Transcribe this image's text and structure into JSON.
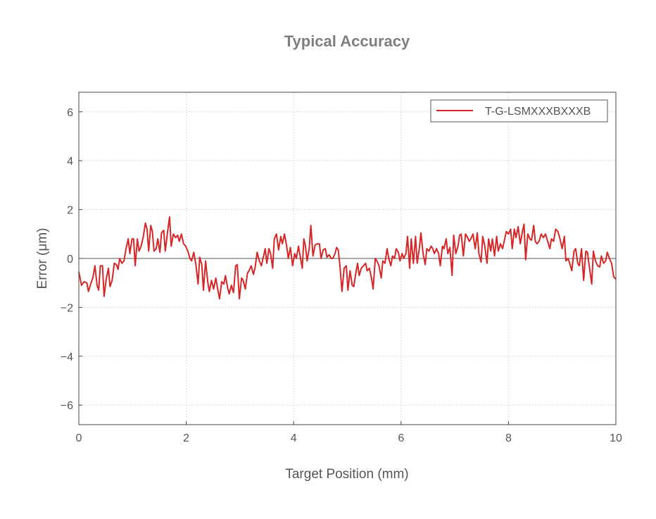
{
  "chart_data": {
    "type": "line",
    "title": "Typical Accuracy",
    "xlabel": "Target Position (mm)",
    "ylabel": "Error (μm)",
    "xlim": [
      0,
      10
    ],
    "ylim": [
      -6.8,
      6.8
    ],
    "xticks": [
      0,
      2,
      4,
      6,
      8,
      10
    ],
    "yticks": [
      -6,
      -4,
      -2,
      0,
      2,
      4,
      6
    ],
    "xtick_labels": [
      "0",
      "2",
      "4",
      "6",
      "8",
      "10"
    ],
    "ytick_labels": [
      "−6",
      "−4",
      "−2",
      "0",
      "2",
      "4",
      "6"
    ],
    "grid": true,
    "zero_line": true,
    "legend": {
      "position": "top-right"
    },
    "series": [
      {
        "name": "T-G-LSMXXXBXXXB",
        "color": "#d62728",
        "points": [
          [
            0.0,
            -0.55
          ],
          [
            0.05,
            -1.1
          ],
          [
            0.1,
            -0.95
          ],
          [
            0.15,
            -1.0
          ],
          [
            0.18,
            -1.35
          ],
          [
            0.22,
            -1.05
          ],
          [
            0.26,
            -0.8
          ],
          [
            0.3,
            -0.3
          ],
          [
            0.34,
            -1.1
          ],
          [
            0.37,
            -1.3
          ],
          [
            0.4,
            -0.3
          ],
          [
            0.44,
            -0.3
          ],
          [
            0.47,
            -1.55
          ],
          [
            0.51,
            -0.85
          ],
          [
            0.55,
            -0.4
          ],
          [
            0.58,
            -1.15
          ],
          [
            0.62,
            -0.9
          ],
          [
            0.66,
            -0.2
          ],
          [
            0.7,
            -0.25
          ],
          [
            0.73,
            -0.45
          ],
          [
            0.76,
            0.0
          ],
          [
            0.8,
            -0.2
          ],
          [
            0.84,
            -0.1
          ],
          [
            0.88,
            0.4
          ],
          [
            0.92,
            0.8
          ],
          [
            0.95,
            0.2
          ],
          [
            0.99,
            0.8
          ],
          [
            1.02,
            0.8
          ],
          [
            1.05,
            -0.3
          ],
          [
            1.09,
            0.8
          ],
          [
            1.12,
            0.3
          ],
          [
            1.16,
            0.5
          ],
          [
            1.2,
            0.9
          ],
          [
            1.24,
            1.45
          ],
          [
            1.27,
            1.2
          ],
          [
            1.3,
            0.3
          ],
          [
            1.34,
            1.35
          ],
          [
            1.37,
            1.1
          ],
          [
            1.4,
            0.3
          ],
          [
            1.44,
            0.4
          ],
          [
            1.47,
            0.8
          ],
          [
            1.51,
            0.25
          ],
          [
            1.54,
            1.05
          ],
          [
            1.58,
            1.15
          ],
          [
            1.61,
            0.3
          ],
          [
            1.65,
            1.05
          ],
          [
            1.69,
            1.7
          ],
          [
            1.72,
            0.5
          ],
          [
            1.76,
            1.0
          ],
          [
            1.8,
            0.85
          ],
          [
            1.84,
            0.95
          ],
          [
            1.87,
            0.7
          ],
          [
            1.91,
            1.0
          ],
          [
            1.95,
            0.6
          ],
          [
            1.99,
            0.5
          ],
          [
            2.03,
            0.3
          ],
          [
            2.07,
            0.0
          ],
          [
            2.1,
            -0.1
          ],
          [
            2.14,
            0.25
          ],
          [
            2.18,
            -0.25
          ],
          [
            2.22,
            -1.05
          ],
          [
            2.25,
            0.05
          ],
          [
            2.29,
            -0.25
          ],
          [
            2.32,
            -1.3
          ],
          [
            2.36,
            -0.1
          ],
          [
            2.4,
            -0.95
          ],
          [
            2.43,
            -1.35
          ],
          [
            2.47,
            -0.9
          ],
          [
            2.51,
            -1.25
          ],
          [
            2.55,
            -0.8
          ],
          [
            2.58,
            -1.2
          ],
          [
            2.62,
            -1.65
          ],
          [
            2.66,
            -0.95
          ],
          [
            2.7,
            -1.05
          ],
          [
            2.73,
            -0.7
          ],
          [
            2.77,
            -1.2
          ],
          [
            2.8,
            -1.45
          ],
          [
            2.84,
            -1.1
          ],
          [
            2.88,
            -1.4
          ],
          [
            2.92,
            -0.3
          ],
          [
            2.95,
            -0.25
          ],
          [
            2.99,
            -1.65
          ],
          [
            3.03,
            -0.8
          ],
          [
            3.06,
            -0.9
          ],
          [
            3.1,
            -1.25
          ],
          [
            3.14,
            -0.6
          ],
          [
            3.17,
            -0.5
          ],
          [
            3.21,
            -0.3
          ],
          [
            3.25,
            -0.65
          ],
          [
            3.28,
            -0.4
          ],
          [
            3.32,
            0.25
          ],
          [
            3.36,
            -0.1
          ],
          [
            3.4,
            -0.3
          ],
          [
            3.43,
            0.0
          ],
          [
            3.47,
            0.4
          ],
          [
            3.5,
            -0.2
          ],
          [
            3.54,
            0.4
          ],
          [
            3.57,
            0.2
          ],
          [
            3.61,
            -0.4
          ],
          [
            3.64,
            0.8
          ],
          [
            3.68,
            1.0
          ],
          [
            3.72,
            0.35
          ],
          [
            3.76,
            0.9
          ],
          [
            3.79,
            0.6
          ],
          [
            3.83,
            1.0
          ],
          [
            3.87,
            0.5
          ],
          [
            3.9,
            0.0
          ],
          [
            3.94,
            0.45
          ],
          [
            3.98,
            -0.3
          ],
          [
            4.02,
            0.2
          ],
          [
            4.05,
            0.0
          ],
          [
            4.09,
            0.5
          ],
          [
            4.12,
            0.1
          ],
          [
            4.16,
            -0.4
          ],
          [
            4.19,
            0.8
          ],
          [
            4.22,
            0.5
          ],
          [
            4.25,
            -0.1
          ],
          [
            4.29,
            0.4
          ],
          [
            4.32,
            1.35
          ],
          [
            4.36,
            0.1
          ],
          [
            4.4,
            0.55
          ],
          [
            4.44,
            0.6
          ],
          [
            4.48,
            0.6
          ],
          [
            4.51,
            0.0
          ],
          [
            4.55,
            0.35
          ],
          [
            4.59,
            0.4
          ],
          [
            4.62,
            0.05
          ],
          [
            4.66,
            0.15
          ],
          [
            4.7,
            0.0
          ],
          [
            4.73,
            0.0
          ],
          [
            4.77,
            0.2
          ],
          [
            4.8,
            0.45
          ],
          [
            4.83,
            0.35
          ],
          [
            4.86,
            -0.25
          ],
          [
            4.9,
            -1.35
          ],
          [
            4.94,
            -0.4
          ],
          [
            4.98,
            -0.3
          ],
          [
            5.01,
            -1.3
          ],
          [
            5.05,
            -0.5
          ],
          [
            5.09,
            -1.1
          ],
          [
            5.12,
            -1.15
          ],
          [
            5.15,
            -0.7
          ],
          [
            5.19,
            -0.2
          ],
          [
            5.22,
            -0.7
          ],
          [
            5.26,
            -0.4
          ],
          [
            5.3,
            -0.3
          ],
          [
            5.34,
            -0.2
          ],
          [
            5.37,
            -0.5
          ],
          [
            5.41,
            -0.4
          ],
          [
            5.45,
            -0.8
          ],
          [
            5.48,
            -1.25
          ],
          [
            5.52,
            0.0
          ],
          [
            5.55,
            -0.1
          ],
          [
            5.59,
            -0.3
          ],
          [
            5.63,
            -0.8
          ],
          [
            5.66,
            -0.1
          ],
          [
            5.7,
            -0.2
          ],
          [
            5.74,
            0.4
          ],
          [
            5.77,
            0.0
          ],
          [
            5.81,
            -0.3
          ],
          [
            5.84,
            0.1
          ],
          [
            5.88,
            0.0
          ],
          [
            5.91,
            0.4
          ],
          [
            5.95,
            0.25
          ],
          [
            5.98,
            -0.1
          ],
          [
            6.02,
            0.2
          ],
          [
            6.05,
            0.0
          ],
          [
            6.09,
            0.2
          ],
          [
            6.12,
            0.9
          ],
          [
            6.16,
            -0.4
          ],
          [
            6.19,
            0.8
          ],
          [
            6.23,
            -0.2
          ],
          [
            6.27,
            0.9
          ],
          [
            6.3,
            -0.2
          ],
          [
            6.34,
            0.4
          ],
          [
            6.37,
            1.05
          ],
          [
            6.41,
            0.2
          ],
          [
            6.45,
            -0.25
          ],
          [
            6.48,
            0.4
          ],
          [
            6.52,
            0.3
          ],
          [
            6.56,
            0.5
          ],
          [
            6.59,
            0.4
          ],
          [
            6.62,
            0.2
          ],
          [
            6.66,
            0.4
          ],
          [
            6.7,
            0.2
          ],
          [
            6.73,
            -0.3
          ],
          [
            6.77,
            0.5
          ],
          [
            6.8,
            0.4
          ],
          [
            6.84,
            0.8
          ],
          [
            6.87,
            0.2
          ],
          [
            6.91,
            0.45
          ],
          [
            6.95,
            -0.7
          ],
          [
            6.98,
            0.95
          ],
          [
            7.02,
            0.2
          ],
          [
            7.06,
            0.5
          ],
          [
            7.09,
            0.95
          ],
          [
            7.12,
            1.0
          ],
          [
            7.16,
            0.1
          ],
          [
            7.2,
            1.0
          ],
          [
            7.23,
            0.9
          ],
          [
            7.27,
            0.7
          ],
          [
            7.3,
            0.8
          ],
          [
            7.34,
            1.0
          ],
          [
            7.38,
            0.4
          ],
          [
            7.42,
            1.05
          ],
          [
            7.45,
            0.2
          ],
          [
            7.49,
            -0.15
          ],
          [
            7.52,
            0.9
          ],
          [
            7.56,
            0.5
          ],
          [
            7.6,
            -0.2
          ],
          [
            7.63,
            0.8
          ],
          [
            7.67,
            0.3
          ],
          [
            7.7,
            0.8
          ],
          [
            7.74,
            0.1
          ],
          [
            7.78,
            0.9
          ],
          [
            7.81,
            0.3
          ],
          [
            7.85,
            0.6
          ],
          [
            7.89,
            0.4
          ],
          [
            7.92,
            0.7
          ],
          [
            7.96,
            1.1
          ],
          [
            8.0,
            1.0
          ],
          [
            8.04,
            1.2
          ],
          [
            8.07,
            0.4
          ],
          [
            8.11,
            1.2
          ],
          [
            8.14,
            0.85
          ],
          [
            8.18,
            1.3
          ],
          [
            8.22,
            0.6
          ],
          [
            8.26,
            1.1
          ],
          [
            8.29,
            1.4
          ],
          [
            8.32,
            -0.05
          ],
          [
            8.36,
            1.0
          ],
          [
            8.4,
            0.8
          ],
          [
            8.43,
            0.75
          ],
          [
            8.47,
            1.35
          ],
          [
            8.5,
            0.7
          ],
          [
            8.53,
            0.6
          ],
          [
            8.57,
            0.7
          ],
          [
            8.61,
            1.0
          ],
          [
            8.65,
            0.85
          ],
          [
            8.69,
            1.0
          ],
          [
            8.73,
            0.7
          ],
          [
            8.77,
            0.4
          ],
          [
            8.8,
            0.8
          ],
          [
            8.84,
            0.7
          ],
          [
            8.88,
            1.2
          ],
          [
            8.92,
            1.1
          ],
          [
            8.96,
            0.8
          ],
          [
            9.0,
            0.4
          ],
          [
            9.04,
            0.9
          ],
          [
            9.07,
            -0.1
          ],
          [
            9.11,
            0.0
          ],
          [
            9.14,
            -0.2
          ],
          [
            9.18,
            -0.5
          ],
          [
            9.22,
            0.3
          ],
          [
            9.25,
            0.4
          ],
          [
            9.29,
            -0.2
          ],
          [
            9.32,
            -0.3
          ],
          [
            9.36,
            0.4
          ],
          [
            9.4,
            -0.9
          ],
          [
            9.44,
            0.3
          ],
          [
            9.47,
            0.25
          ],
          [
            9.51,
            -0.4
          ],
          [
            9.55,
            -1.05
          ],
          [
            9.58,
            0.3
          ],
          [
            9.62,
            -0.1
          ],
          [
            9.66,
            -0.3
          ],
          [
            9.7,
            -0.35
          ],
          [
            9.73,
            0.1
          ],
          [
            9.77,
            -0.2
          ],
          [
            9.81,
            -0.1
          ],
          [
            9.84,
            0.25
          ],
          [
            9.88,
            0.0
          ],
          [
            9.92,
            -0.2
          ],
          [
            9.96,
            -0.75
          ],
          [
            10.0,
            -0.85
          ]
        ]
      }
    ]
  }
}
